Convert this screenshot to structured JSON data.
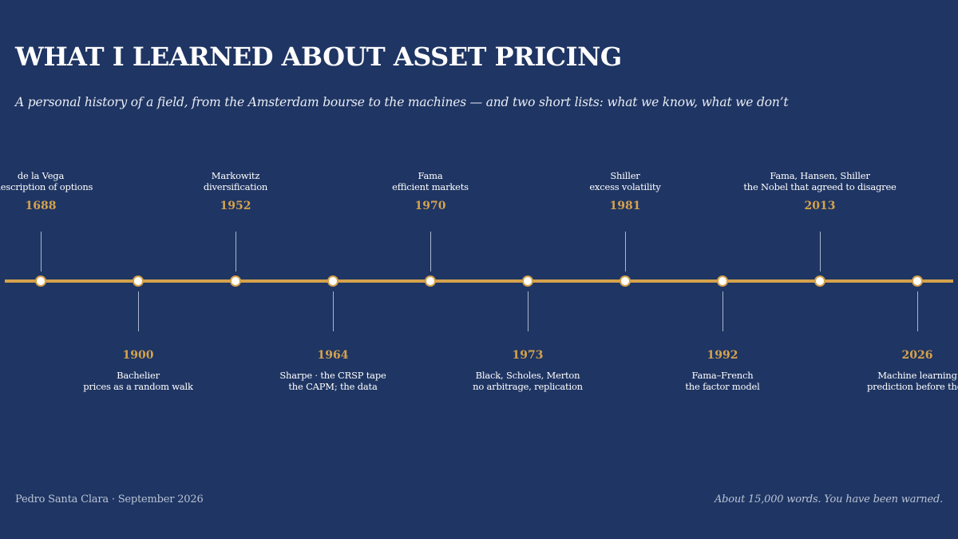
{
  "header": {
    "title": "WHAT I LEARNED ABOUT ASSET PRICING",
    "subtitle": "A personal history of a field, from the Amsterdam bourse to the machines — and two short lists: what we know, what we don’t"
  },
  "colors": {
    "background": "#1f3563",
    "accent": "#d4a24c",
    "text": "#ffffff",
    "muted": "#b9c3d6"
  },
  "timeline": {
    "events": [
      {
        "year": "1688",
        "line1": "de la Vega",
        "line2": "t description of options"
      },
      {
        "year": "1900",
        "line1": "Bachelier",
        "line2": "prices as a random walk"
      },
      {
        "year": "1952",
        "line1": "Markowitz",
        "line2": "diversification"
      },
      {
        "year": "1964",
        "line1": "Sharpe · the CRSP tape",
        "line2": "the CAPM; the data"
      },
      {
        "year": "1970",
        "line1": "Fama",
        "line2": "efficient markets"
      },
      {
        "year": "1973",
        "line1": "Black, Scholes, Merton",
        "line2": "no arbitrage, replication"
      },
      {
        "year": "1981",
        "line1": "Shiller",
        "line2": "excess volatility"
      },
      {
        "year": "1992",
        "line1": "Fama–French",
        "line2": "the factor model"
      },
      {
        "year": "2013",
        "line1": "Fama, Hansen, Shiller",
        "line2": "the Nobel that agreed to disagree"
      },
      {
        "year": "2026",
        "line1": "Machine learning",
        "line2": "prediction before theo"
      }
    ]
  },
  "footer": {
    "author": "Pedro Santa Clara · September 2026",
    "note": "About 15,000 words. You have been warned."
  }
}
